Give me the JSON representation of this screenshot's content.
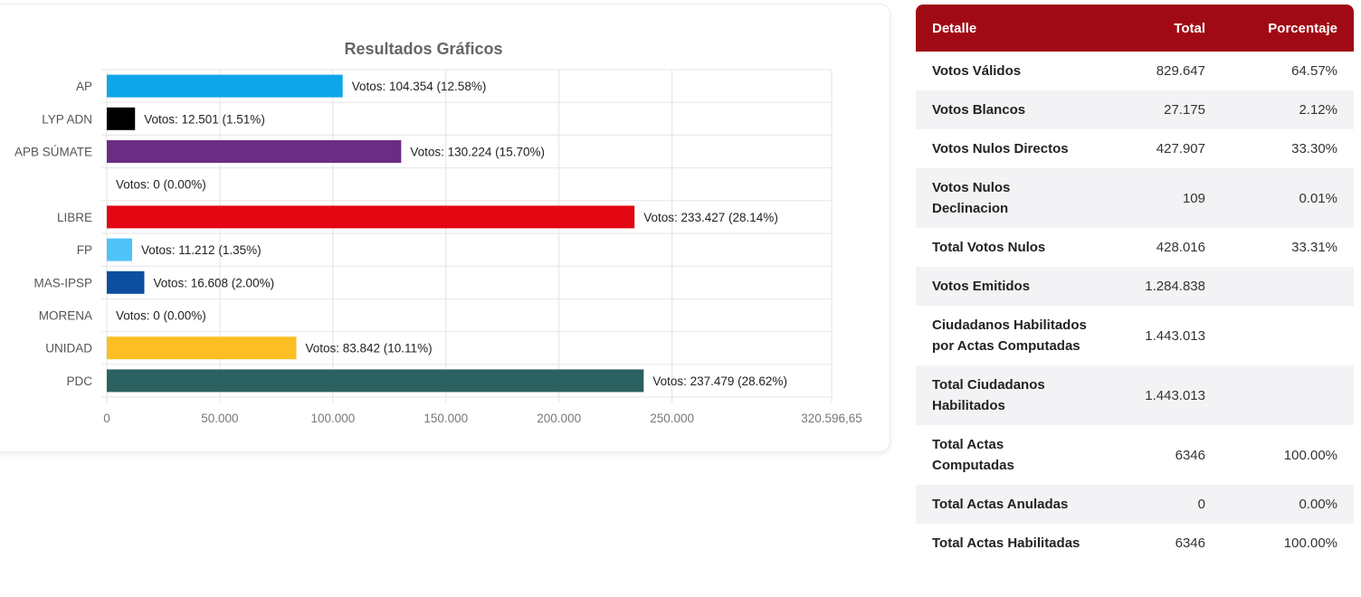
{
  "chart_data": {
    "type": "bar",
    "orientation": "horizontal",
    "title": "Resultados Gráficos",
    "categories": [
      "AP",
      "LYP ADN",
      "APB SÚMATE",
      "",
      "LIBRE",
      "FP",
      "MAS-IPSP",
      "MORENA",
      "UNIDAD",
      "PDC"
    ],
    "values": [
      104354,
      12501,
      130224,
      0,
      233427,
      11212,
      16608,
      0,
      83842,
      237479
    ],
    "data_labels": [
      "Votos: 104.354 (12.58%)",
      "Votos: 12.501 (1.51%)",
      "Votos: 130.224 (15.70%)",
      "Votos: 0 (0.00%)",
      "Votos: 233.427 (28.14%)",
      "Votos: 11.212 (1.35%)",
      "Votos: 16.608 (2.00%)",
      "Votos: 0 (0.00%)",
      "Votos: 83.842 (10.11%)",
      "Votos: 237.479 (28.62%)"
    ],
    "colors": [
      "#0ea5e9",
      "#000000",
      "#6b2d83",
      "#cccccc",
      "#e30613",
      "#4fc3f7",
      "#0d4ea1",
      "#999999",
      "#fbbf24",
      "#2c6161"
    ],
    "xlim": [
      0,
      320596.65
    ],
    "x_ticks": [
      0,
      50000,
      100000,
      150000,
      200000,
      250000,
      320596.65
    ],
    "x_tick_labels": [
      "0",
      "50.000",
      "100.000",
      "150.000",
      "200.000",
      "250.000",
      "320.596,65"
    ],
    "grid": true,
    "xlabel": "",
    "ylabel": ""
  },
  "table": {
    "headers": {
      "detail": "Detalle",
      "total": "Total",
      "percent": "Porcentaje"
    },
    "rows": [
      {
        "label": "Votos Válidos",
        "total": "829.647",
        "percent": "64.57%"
      },
      {
        "label": "Votos Blancos",
        "total": "27.175",
        "percent": "2.12%"
      },
      {
        "label": "Votos Nulos Directos",
        "total": "427.907",
        "percent": "33.30%"
      },
      {
        "label": "Votos Nulos Declinacion",
        "total": "109",
        "percent": "0.01%"
      },
      {
        "label": "Total Votos Nulos",
        "total": "428.016",
        "percent": "33.31%"
      },
      {
        "label": "Votos Emitidos",
        "total": "1.284.838",
        "percent": ""
      },
      {
        "label": "Ciudadanos Habilitados por Actas Computadas",
        "total": "1.443.013",
        "percent": ""
      },
      {
        "label": "Total Ciudadanos Habilitados",
        "total": "1.443.013",
        "percent": ""
      },
      {
        "label": "Total Actas Computadas",
        "total": "6346",
        "percent": "100.00%"
      },
      {
        "label": "Total Actas Anuladas",
        "total": "0",
        "percent": "0.00%"
      },
      {
        "label": "Total Actas Habilitadas",
        "total": "6346",
        "percent": "100.00%"
      }
    ]
  }
}
